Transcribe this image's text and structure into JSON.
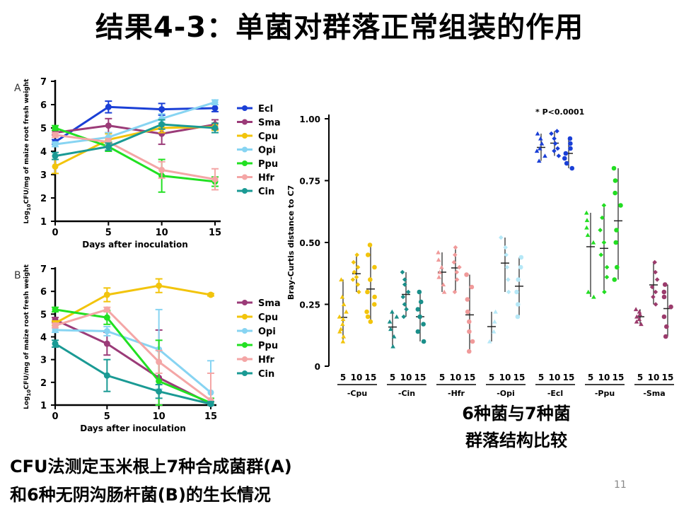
{
  "slide": {
    "title": "结果4-3：单菌对群落正常组装的作用",
    "caption_a_line1": "CFU法测定玉米根上7种合成菌群(A)",
    "caption_a_line2": "和6种无阴沟肠杆菌(B)的生长情况",
    "caption_b_line1": "6种菌与7种菌",
    "caption_b_line2": "群落结构比较",
    "page_number": "11"
  },
  "chart_data": [
    {
      "type": "line",
      "panel_label": "A",
      "xlabel": "Days after inoculation",
      "ylabel": "Log10CFU/mg of maize root fresh weight",
      "ylabel_prefix": "Log",
      "ylabel_sub": "10",
      "ylabel_rest": "CFU/mg of maize root fresh weight",
      "x": [
        0,
        5,
        10,
        15
      ],
      "xticks": [
        "0",
        "5",
        "10",
        "15"
      ],
      "ylim": [
        1,
        7
      ],
      "yticks": [
        "1",
        "2",
        "3",
        "4",
        "5",
        "6",
        "7"
      ],
      "legend_position": "right",
      "series": [
        {
          "name": "Ecl",
          "color": "#1a3fd6",
          "marker": "circle",
          "values": [
            4.4,
            5.9,
            5.8,
            5.85
          ],
          "err": [
            0.1,
            0.25,
            0.25,
            0.15
          ]
        },
        {
          "name": "Sma",
          "color": "#9b3b78",
          "marker": "circle",
          "values": [
            4.8,
            5.1,
            4.75,
            5.15
          ],
          "err": [
            0.1,
            0.3,
            0.45,
            0.2
          ]
        },
        {
          "name": "Cpu",
          "color": "#f2c40c",
          "marker": "circle",
          "values": [
            3.35,
            4.5,
            5.0,
            5.05
          ],
          "err": [
            0.3,
            0.25,
            0.2,
            0.15
          ]
        },
        {
          "name": "Opi",
          "color": "#87d4f2",
          "marker": "circle",
          "values": [
            4.3,
            4.6,
            5.4,
            6.1
          ],
          "err": [
            0.1,
            0.2,
            0.2,
            0.1
          ]
        },
        {
          "name": "Ppu",
          "color": "#22e022",
          "marker": "circle",
          "values": [
            5.0,
            4.2,
            2.95,
            2.7
          ],
          "err": [
            0.1,
            0.2,
            0.7,
            0.2
          ]
        },
        {
          "name": "Hfr",
          "color": "#f4a6a6",
          "marker": "circle",
          "values": [
            4.7,
            4.4,
            3.2,
            2.8
          ],
          "err": [
            0.1,
            0.15,
            0.35,
            0.45
          ]
        },
        {
          "name": "Cin",
          "color": "#1a9a94",
          "marker": "circle",
          "values": [
            3.8,
            4.2,
            5.15,
            5.0
          ],
          "err": [
            0.15,
            0.15,
            0.2,
            0.2
          ]
        }
      ]
    },
    {
      "type": "line",
      "panel_label": "B",
      "xlabel": "Days after inoculation",
      "ylabel": "Log10CFU/mg of maize root fresh weight",
      "ylabel_prefix": "Log",
      "ylabel_sub": "10",
      "ylabel_rest": "CFU/mg of maize root fresh weight",
      "x": [
        0,
        5,
        10,
        15
      ],
      "xticks": [
        "0",
        "5",
        "10",
        "15"
      ],
      "ylim": [
        1,
        7
      ],
      "yticks": [
        "1",
        "2",
        "3",
        "4",
        "5",
        "6",
        "7"
      ],
      "legend_position": "right",
      "series": [
        {
          "name": "Sma",
          "color": "#9b3b78",
          "marker": "circle",
          "values": [
            4.75,
            3.7,
            2.2,
            1.05
          ],
          "err": [
            0.1,
            0.5,
            2.1,
            0.1
          ]
        },
        {
          "name": "Cpu",
          "color": "#f2c40c",
          "marker": "circle",
          "values": [
            4.6,
            5.85,
            6.25,
            5.85
          ],
          "err": [
            0.1,
            0.3,
            0.3,
            0.05
          ]
        },
        {
          "name": "Opi",
          "color": "#87d4f2",
          "marker": "circle",
          "values": [
            4.3,
            4.25,
            3.45,
            1.55
          ],
          "err": [
            0.1,
            0.2,
            1.75,
            1.4
          ]
        },
        {
          "name": "Ppu",
          "color": "#22e022",
          "marker": "circle",
          "values": [
            5.2,
            4.85,
            2.05,
            1.1
          ],
          "err": [
            0.1,
            0.3,
            1.8,
            0.2
          ]
        },
        {
          "name": "Hfr",
          "color": "#f4a6a6",
          "marker": "circle",
          "values": [
            4.5,
            5.2,
            2.9,
            1.2
          ],
          "err": [
            0.1,
            0.1,
            0.5,
            1.2
          ]
        },
        {
          "name": "Cin",
          "color": "#1a9a94",
          "marker": "circle",
          "values": [
            3.7,
            2.3,
            1.6,
            1.05
          ],
          "err": [
            0.15,
            0.7,
            0.3,
            0.1
          ]
        }
      ]
    },
    {
      "type": "scatter",
      "ylabel": "Bray-Curtis distance to C7",
      "ylim": [
        0,
        1
      ],
      "yticks": [
        "0",
        "0.25",
        "0.50",
        "0.75",
        "1.00"
      ],
      "day_ticks": [
        "5",
        "10",
        "15"
      ],
      "annotation": "* P<0.0001",
      "annotation_group": "-Ecl",
      "groups": [
        {
          "name": "-Cpu",
          "color": "#f2c40c",
          "days": [
            {
              "day": 5,
              "marker": "triangle",
              "points": [
                0.1,
                0.12,
                0.14,
                0.15,
                0.17,
                0.19,
                0.2,
                0.22,
                0.25,
                0.28,
                0.35
              ]
            },
            {
              "day": 10,
              "marker": "diamond",
              "points": [
                0.3,
                0.33,
                0.35,
                0.36,
                0.38,
                0.4,
                0.42,
                0.45
              ]
            },
            {
              "day": 15,
              "marker": "circle",
              "points": [
                0.18,
                0.2,
                0.22,
                0.25,
                0.28,
                0.3,
                0.35,
                0.4,
                0.45,
                0.49
              ]
            }
          ]
        },
        {
          "name": "-Cin",
          "color": "#1a8f8a",
          "days": [
            {
              "day": 5,
              "marker": "triangle",
              "points": [
                0.08,
                0.12,
                0.15,
                0.18,
                0.2,
                0.22
              ]
            },
            {
              "day": 10,
              "marker": "diamond",
              "points": [
                0.2,
                0.23,
                0.25,
                0.28,
                0.3,
                0.33,
                0.35,
                0.38
              ]
            },
            {
              "day": 15,
              "marker": "circle",
              "points": [
                0.1,
                0.14,
                0.17,
                0.2,
                0.23,
                0.26,
                0.3
              ]
            }
          ]
        },
        {
          "name": "-Hfr",
          "color": "#f09a9a",
          "days": [
            {
              "day": 5,
              "marker": "triangle",
              "points": [
                0.3,
                0.33,
                0.36,
                0.38,
                0.4,
                0.43,
                0.46
              ]
            },
            {
              "day": 10,
              "marker": "diamond",
              "points": [
                0.3,
                0.35,
                0.38,
                0.4,
                0.42,
                0.45,
                0.48
              ]
            },
            {
              "day": 15,
              "marker": "circle",
              "points": [
                0.06,
                0.1,
                0.14,
                0.18,
                0.22,
                0.27,
                0.32,
                0.37
              ]
            }
          ]
        },
        {
          "name": "-Opi",
          "color": "#b6e8f7",
          "days": [
            {
              "day": 5,
              "marker": "triangle",
              "points": [
                0.1,
                0.14,
                0.18,
                0.22
              ]
            },
            {
              "day": 10,
              "marker": "diamond",
              "points": [
                0.3,
                0.35,
                0.4,
                0.45,
                0.48,
                0.52
              ]
            },
            {
              "day": 15,
              "marker": "circle",
              "points": [
                0.2,
                0.25,
                0.3,
                0.35,
                0.4,
                0.44
              ]
            }
          ]
        },
        {
          "name": "-Ecl",
          "color": "#1a3fd6",
          "days": [
            {
              "day": 5,
              "marker": "triangle",
              "points": [
                0.83,
                0.85,
                0.87,
                0.88,
                0.9,
                0.92,
                0.94
              ]
            },
            {
              "day": 10,
              "marker": "diamond",
              "points": [
                0.85,
                0.87,
                0.88,
                0.9,
                0.92,
                0.94,
                0.95
              ]
            },
            {
              "day": 15,
              "marker": "circle",
              "points": [
                0.8,
                0.82,
                0.84,
                0.86,
                0.88,
                0.9,
                0.92
              ]
            }
          ]
        },
        {
          "name": "-Ppu",
          "color": "#22dd22",
          "days": [
            {
              "day": 5,
              "marker": "triangle",
              "points": [
                0.28,
                0.3,
                0.5,
                0.53,
                0.56,
                0.59,
                0.62
              ]
            },
            {
              "day": 10,
              "marker": "diamond",
              "points": [
                0.3,
                0.36,
                0.4,
                0.45,
                0.5,
                0.55,
                0.6,
                0.65
              ]
            },
            {
              "day": 15,
              "marker": "circle",
              "points": [
                0.35,
                0.4,
                0.5,
                0.55,
                0.65,
                0.7,
                0.75,
                0.8
              ]
            }
          ]
        },
        {
          "name": "-Sma",
          "color": "#9b3b6c",
          "days": [
            {
              "day": 5,
              "marker": "triangle",
              "points": [
                0.17,
                0.18,
                0.19,
                0.2,
                0.21,
                0.22,
                0.23
              ]
            },
            {
              "day": 10,
              "marker": "diamond",
              "points": [
                0.25,
                0.28,
                0.3,
                0.32,
                0.35,
                0.38,
                0.42
              ]
            },
            {
              "day": 15,
              "marker": "circle",
              "points": [
                0.12,
                0.16,
                0.2,
                0.24,
                0.28,
                0.3,
                0.33
              ]
            }
          ]
        }
      ]
    }
  ]
}
